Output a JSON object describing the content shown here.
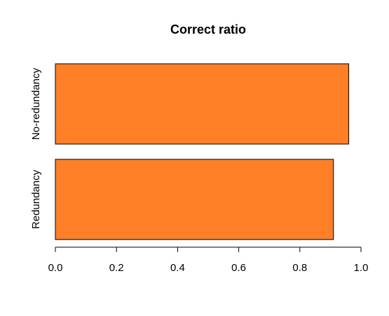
{
  "chart_data": {
    "type": "bar",
    "orientation": "horizontal",
    "title": "Correct ratio",
    "xlabel": "",
    "ylabel": "",
    "categories": [
      "Redundancy",
      "No-redundancy"
    ],
    "values": [
      0.91,
      0.96
    ],
    "xlim": [
      0,
      1
    ],
    "ticks": [
      "0.0",
      "0.2",
      "0.4",
      "0.6",
      "0.8",
      "1.0"
    ],
    "tick_values": [
      0,
      0.2,
      0.4,
      0.6,
      0.8,
      1.0
    ],
    "bar_color": "#ff7f27",
    "grid": false,
    "legend": "none"
  }
}
